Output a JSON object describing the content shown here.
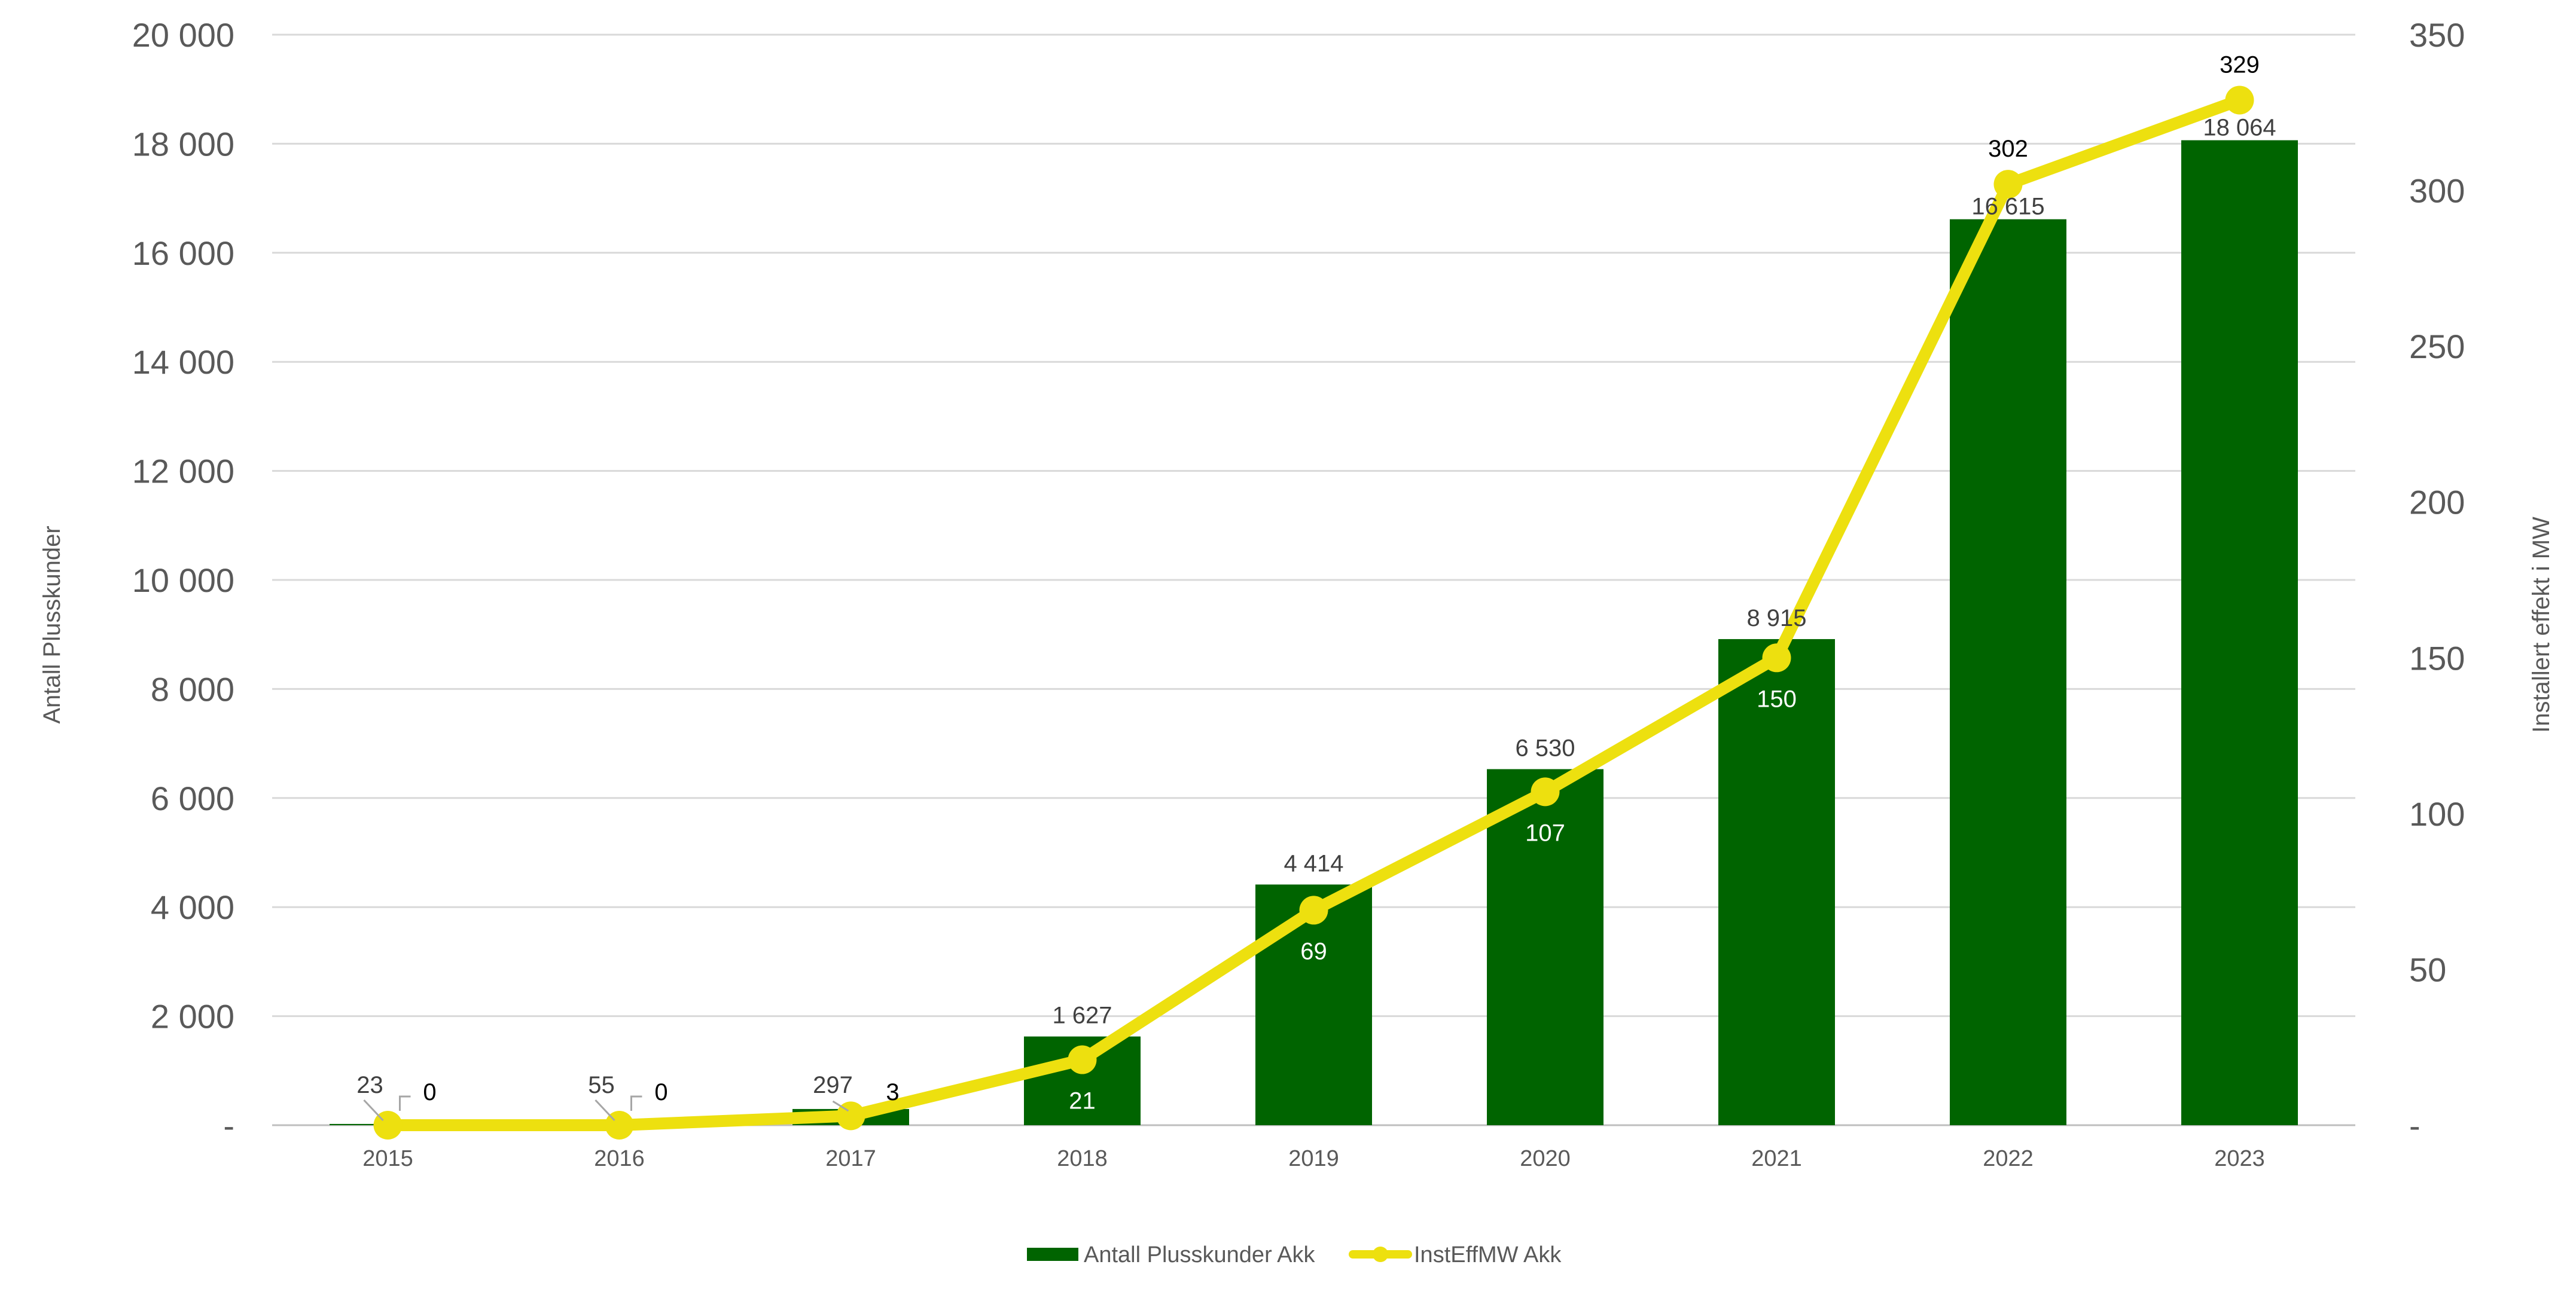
{
  "chart_data": {
    "type": "bar",
    "categories": [
      "2015",
      "2016",
      "2017",
      "2018",
      "2019",
      "2020",
      "2021",
      "2022",
      "2023"
    ],
    "series": [
      {
        "name": "Antall Plusskunder Akk",
        "type": "bar",
        "axis": "left",
        "color": "#006400",
        "values": [
          23,
          55,
          297,
          1627,
          4414,
          6530,
          8915,
          16615,
          18064
        ],
        "labels": [
          "23",
          "55",
          "297",
          "1 627",
          "4 414",
          "6 530",
          "8 915",
          "16 615",
          "18 064"
        ]
      },
      {
        "name": "InstEffMW Akk",
        "type": "line",
        "axis": "right",
        "color": "#ede00f",
        "values": [
          0,
          0,
          3,
          21,
          69,
          107,
          150,
          302,
          329
        ],
        "labels": [
          "0",
          "0",
          "3",
          "21",
          "69",
          "107",
          "150",
          "302",
          "329"
        ]
      }
    ],
    "ylabel": "Antall Plusskunder",
    "y2label": "Installert effekt i MW",
    "ylim": [
      0,
      20000
    ],
    "y2lim": [
      0,
      350
    ],
    "yticks": [
      "-",
      "2 000",
      "4 000",
      "6 000",
      "8 000",
      "10 000",
      "12 000",
      "14 000",
      "16 000",
      "18 000",
      "20 000"
    ],
    "y2ticks": [
      "-",
      "50",
      "100",
      "150",
      "200",
      "250",
      "300",
      "350"
    ],
    "grid": true,
    "legend": "bottom-center"
  }
}
